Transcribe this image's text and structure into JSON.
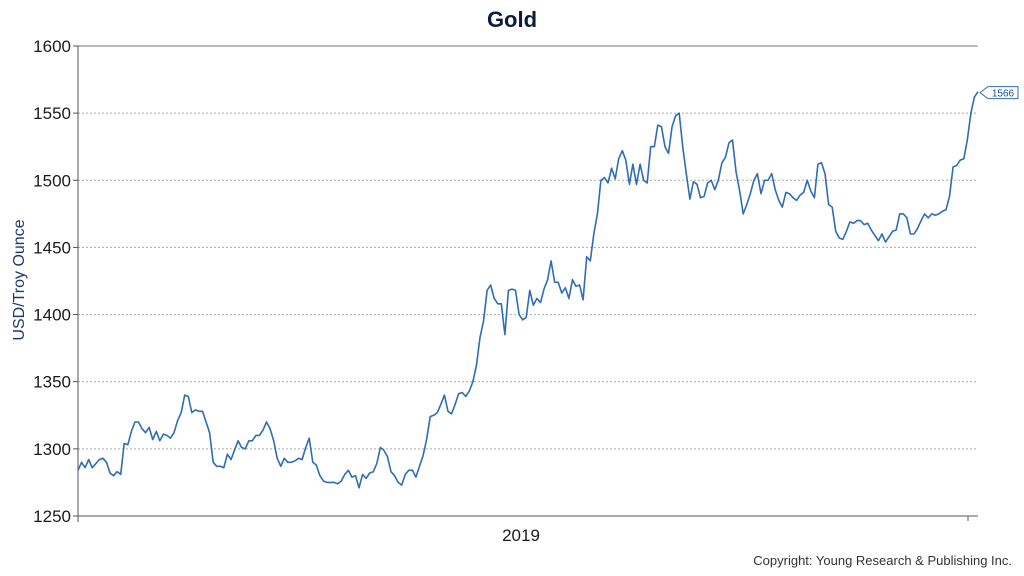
{
  "chart_data": {
    "type": "line",
    "title": "Gold",
    "ylabel": "USD/Troy Ounce",
    "xlabel": "",
    "ylim": [
      1250,
      1600
    ],
    "yticks": [
      "1250",
      "1300",
      "1350",
      "1400",
      "1450",
      "1500",
      "1550",
      "1600"
    ],
    "xticks": [
      "2019"
    ],
    "grid": true,
    "last_value_label": "1566",
    "colors": {
      "line": "#2e6db4",
      "grid": "#aaaaaa",
      "axis": "#555555"
    },
    "series": [
      {
        "values": [
          1284,
          1290,
          1286,
          1292,
          1286,
          1289,
          1292,
          1293,
          1290,
          1282,
          1280,
          1283,
          1281,
          1304,
          1303,
          1313,
          1320,
          1320,
          1315,
          1312,
          1316,
          1307,
          1313,
          1306,
          1311,
          1310,
          1308,
          1312,
          1321,
          1327,
          1340,
          1339,
          1327,
          1329,
          1328,
          1328,
          1320,
          1312,
          1290,
          1287,
          1287,
          1286,
          1296,
          1292,
          1299,
          1306,
          1301,
          1300,
          1306,
          1306,
          1310,
          1310,
          1314,
          1320,
          1315,
          1306,
          1293,
          1287,
          1293,
          1290,
          1290,
          1291,
          1293,
          1292,
          1301,
          1308,
          1290,
          1288,
          1280,
          1276,
          1275,
          1275,
          1275,
          1274,
          1276,
          1281,
          1284,
          1279,
          1280,
          1271,
          1281,
          1278,
          1282,
          1283,
          1289,
          1301,
          1299,
          1294,
          1283,
          1280,
          1275,
          1273,
          1281,
          1284,
          1284,
          1279,
          1287,
          1295,
          1307,
          1324,
          1325,
          1327,
          1333,
          1340,
          1328,
          1326,
          1333,
          1341,
          1342,
          1339,
          1343,
          1350,
          1362,
          1383,
          1395,
          1418,
          1422,
          1412,
          1408,
          1408,
          1385,
          1418,
          1419,
          1418,
          1400,
          1396,
          1398,
          1418,
          1407,
          1412,
          1409,
          1419,
          1426,
          1440,
          1424,
          1424,
          1416,
          1420,
          1412,
          1426,
          1421,
          1422,
          1411,
          1443,
          1440,
          1460,
          1475,
          1500,
          1502,
          1498,
          1509,
          1501,
          1516,
          1522,
          1515,
          1497,
          1512,
          1497,
          1512,
          1500,
          1498,
          1525,
          1525,
          1541,
          1540,
          1525,
          1520,
          1540,
          1548,
          1550,
          1525,
          1505,
          1486,
          1499,
          1497,
          1487,
          1488,
          1498,
          1500,
          1493,
          1500,
          1513,
          1517,
          1528,
          1530,
          1506,
          1492,
          1475,
          1482,
          1490,
          1500,
          1505,
          1490,
          1500,
          1500,
          1505,
          1493,
          1485,
          1480,
          1491,
          1490,
          1487,
          1485,
          1489,
          1491,
          1500,
          1492,
          1487,
          1512,
          1513,
          1505,
          1482,
          1480,
          1462,
          1457,
          1456,
          1462,
          1469,
          1468,
          1470,
          1470,
          1467,
          1468,
          1463,
          1459,
          1455,
          1460,
          1454,
          1458,
          1462,
          1463,
          1475,
          1475,
          1472,
          1460,
          1460,
          1464,
          1470,
          1475,
          1472,
          1475,
          1474,
          1475,
          1477,
          1478,
          1488,
          1510,
          1511,
          1515,
          1516,
          1530,
          1550,
          1562,
          1566
        ]
      }
    ]
  },
  "copyright": "Copyright: Young Research & Publishing Inc."
}
